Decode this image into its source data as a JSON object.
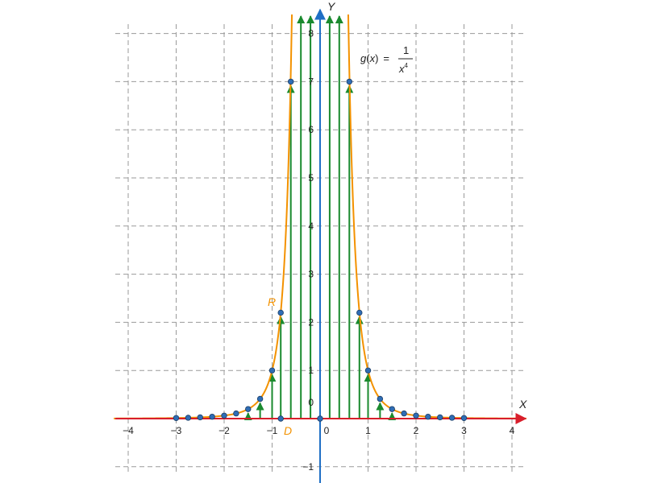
{
  "chart_data": {
    "type": "line",
    "function_label": {
      "lhs_name": "g",
      "lhs_open": "(",
      "lhs_var": "x",
      "lhs_close": ")",
      "equals": "=",
      "numerator": "1",
      "denominator_var": "x",
      "denominator_exp": "4"
    },
    "xlabel": "X",
    "ylabel": "Y",
    "xlim": [
      -4.3,
      4.3
    ],
    "ylim": [
      -1.3,
      8.4
    ],
    "x_ticks": [
      {
        "value": -4,
        "label": "−4"
      },
      {
        "value": -3,
        "label": "−3"
      },
      {
        "value": -2,
        "label": "−2"
      },
      {
        "value": -1,
        "label": "−1"
      },
      {
        "value": 0,
        "label": "0"
      },
      {
        "value": 1,
        "label": "1"
      },
      {
        "value": 2,
        "label": "2"
      },
      {
        "value": 3,
        "label": "3"
      },
      {
        "value": 4,
        "label": "4"
      }
    ],
    "y_ticks": [
      {
        "value": -1,
        "label": "−1"
      },
      {
        "value": 0,
        "label": "0"
      },
      {
        "value": 1,
        "label": "1"
      },
      {
        "value": 2,
        "label": "2"
      },
      {
        "value": 3,
        "label": "3"
      },
      {
        "value": 4,
        "label": "4"
      },
      {
        "value": 5,
        "label": "5"
      },
      {
        "value": 6,
        "label": "6"
      },
      {
        "value": 7,
        "label": "7"
      },
      {
        "value": 8,
        "label": "8"
      }
    ],
    "grid": true,
    "curve_color": "#f39200",
    "arrow_color": "#1a8a2e",
    "x_axis_color": "#d81e2b",
    "y_axis_color": "#1f6fc5",
    "point_color": "#2f6db5",
    "sample_points": [
      {
        "x": -3,
        "y": 0.012
      },
      {
        "x": -2.75,
        "y": 0.017
      },
      {
        "x": -2.5,
        "y": 0.026
      },
      {
        "x": -2.25,
        "y": 0.039
      },
      {
        "x": -2,
        "y": 0.0625
      },
      {
        "x": -1.75,
        "y": 0.107
      },
      {
        "x": -1.5,
        "y": 0.198
      },
      {
        "x": -1.25,
        "y": 0.41
      },
      {
        "x": -1,
        "y": 1
      },
      {
        "x": -0.82,
        "y": 2.2
      },
      {
        "x": -0.61,
        "y": 7
      },
      {
        "x": 0.61,
        "y": 7
      },
      {
        "x": 0.82,
        "y": 2.2
      },
      {
        "x": 1,
        "y": 1
      },
      {
        "x": 1.25,
        "y": 0.41
      },
      {
        "x": 1.5,
        "y": 0.198
      },
      {
        "x": 1.75,
        "y": 0.107
      },
      {
        "x": 2,
        "y": 0.0625
      },
      {
        "x": 2.25,
        "y": 0.039
      },
      {
        "x": 2.5,
        "y": 0.026
      },
      {
        "x": 2.75,
        "y": 0.017
      },
      {
        "x": 3,
        "y": 0.012
      }
    ],
    "axis_points": [
      {
        "x": -0.82,
        "y": 0
      },
      {
        "x": 0,
        "y": 0
      }
    ],
    "tall_arrows_x": [
      -0.4,
      -0.2,
      0.2,
      0.4
    ],
    "range_label": "R",
    "domain_label": "D"
  }
}
